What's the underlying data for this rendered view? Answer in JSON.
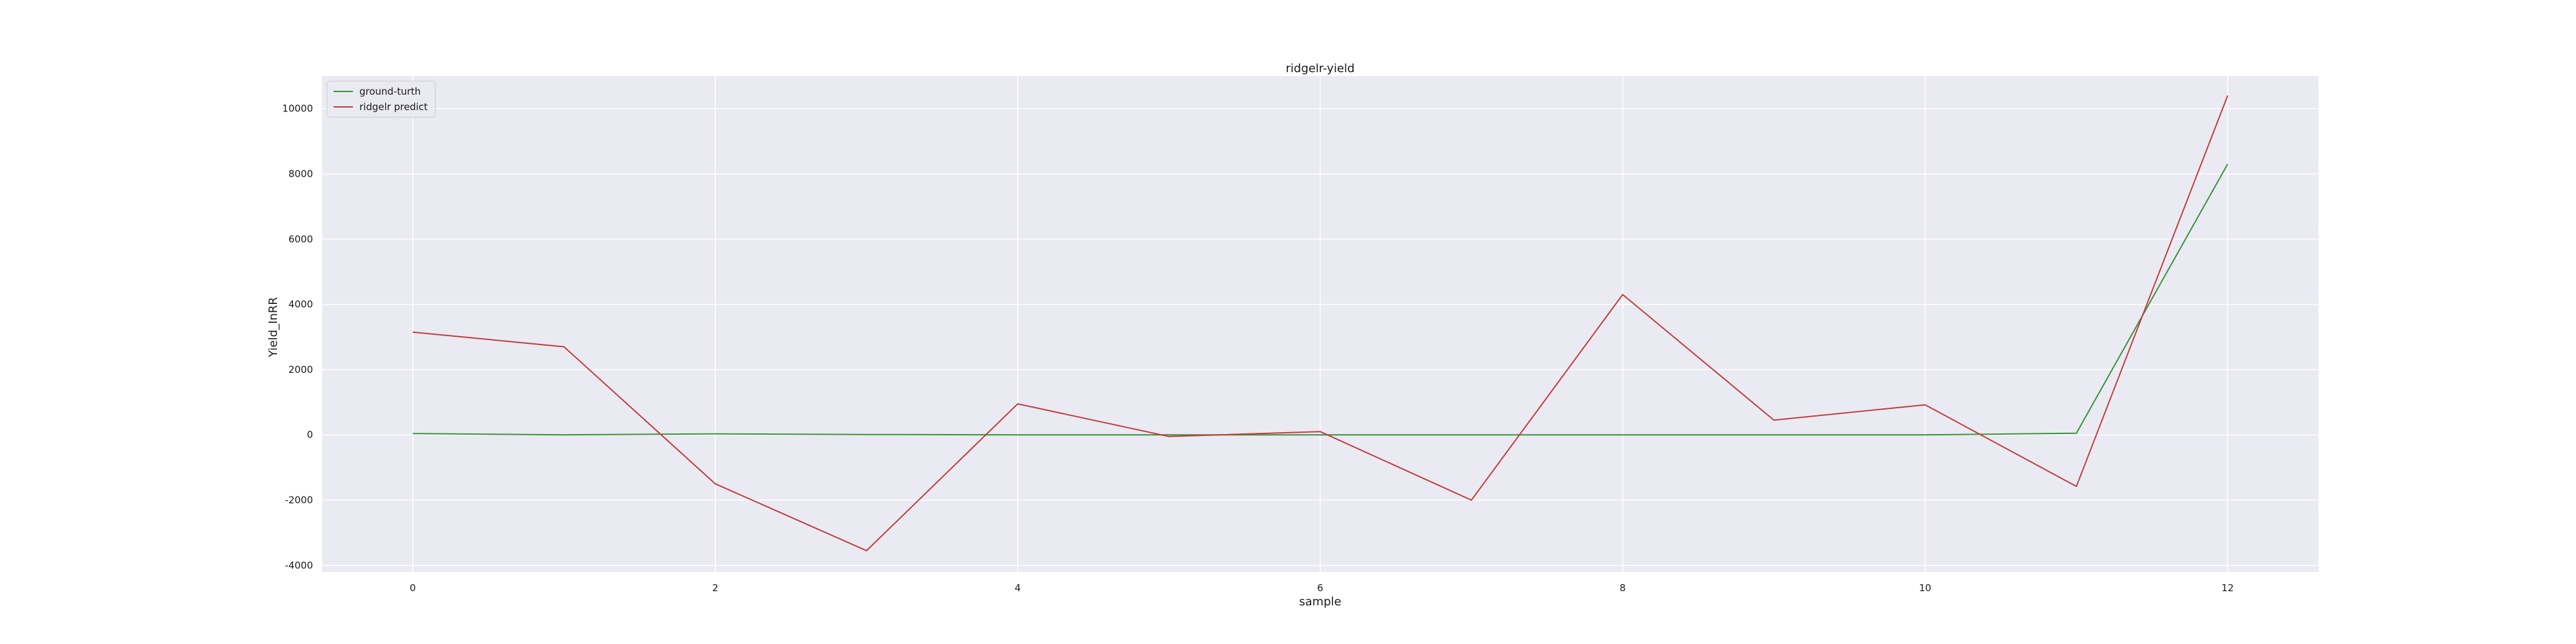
{
  "chart_data": {
    "type": "line",
    "title": "ridgelr-yield",
    "xlabel": "sample",
    "ylabel": "Yield_InRR",
    "x": [
      0,
      1,
      2,
      3,
      4,
      5,
      6,
      7,
      8,
      9,
      10,
      11,
      12
    ],
    "xlim": [
      -0.6,
      12.6
    ],
    "ylim": [
      -4200,
      11000
    ],
    "xticks": [
      0,
      2,
      4,
      6,
      8,
      10,
      12
    ],
    "yticks": [
      -4000,
      -2000,
      0,
      2000,
      4000,
      6000,
      8000,
      10000
    ],
    "grid": true,
    "legend_position": "top-left",
    "background_color": "#eaeaf2",
    "grid_color": "#ffffff",
    "series": [
      {
        "name": "ground-turth",
        "color": "#3a923a",
        "values": [
          40,
          0,
          30,
          10,
          0,
          0,
          0,
          0,
          0,
          0,
          0,
          50,
          8300
        ]
      },
      {
        "name": "ridgelr predict",
        "color": "#c03d3e",
        "values": [
          3150,
          2700,
          -1500,
          -3550,
          950,
          -50,
          100,
          -2000,
          4300,
          450,
          920,
          -1580,
          10400
        ]
      }
    ]
  }
}
